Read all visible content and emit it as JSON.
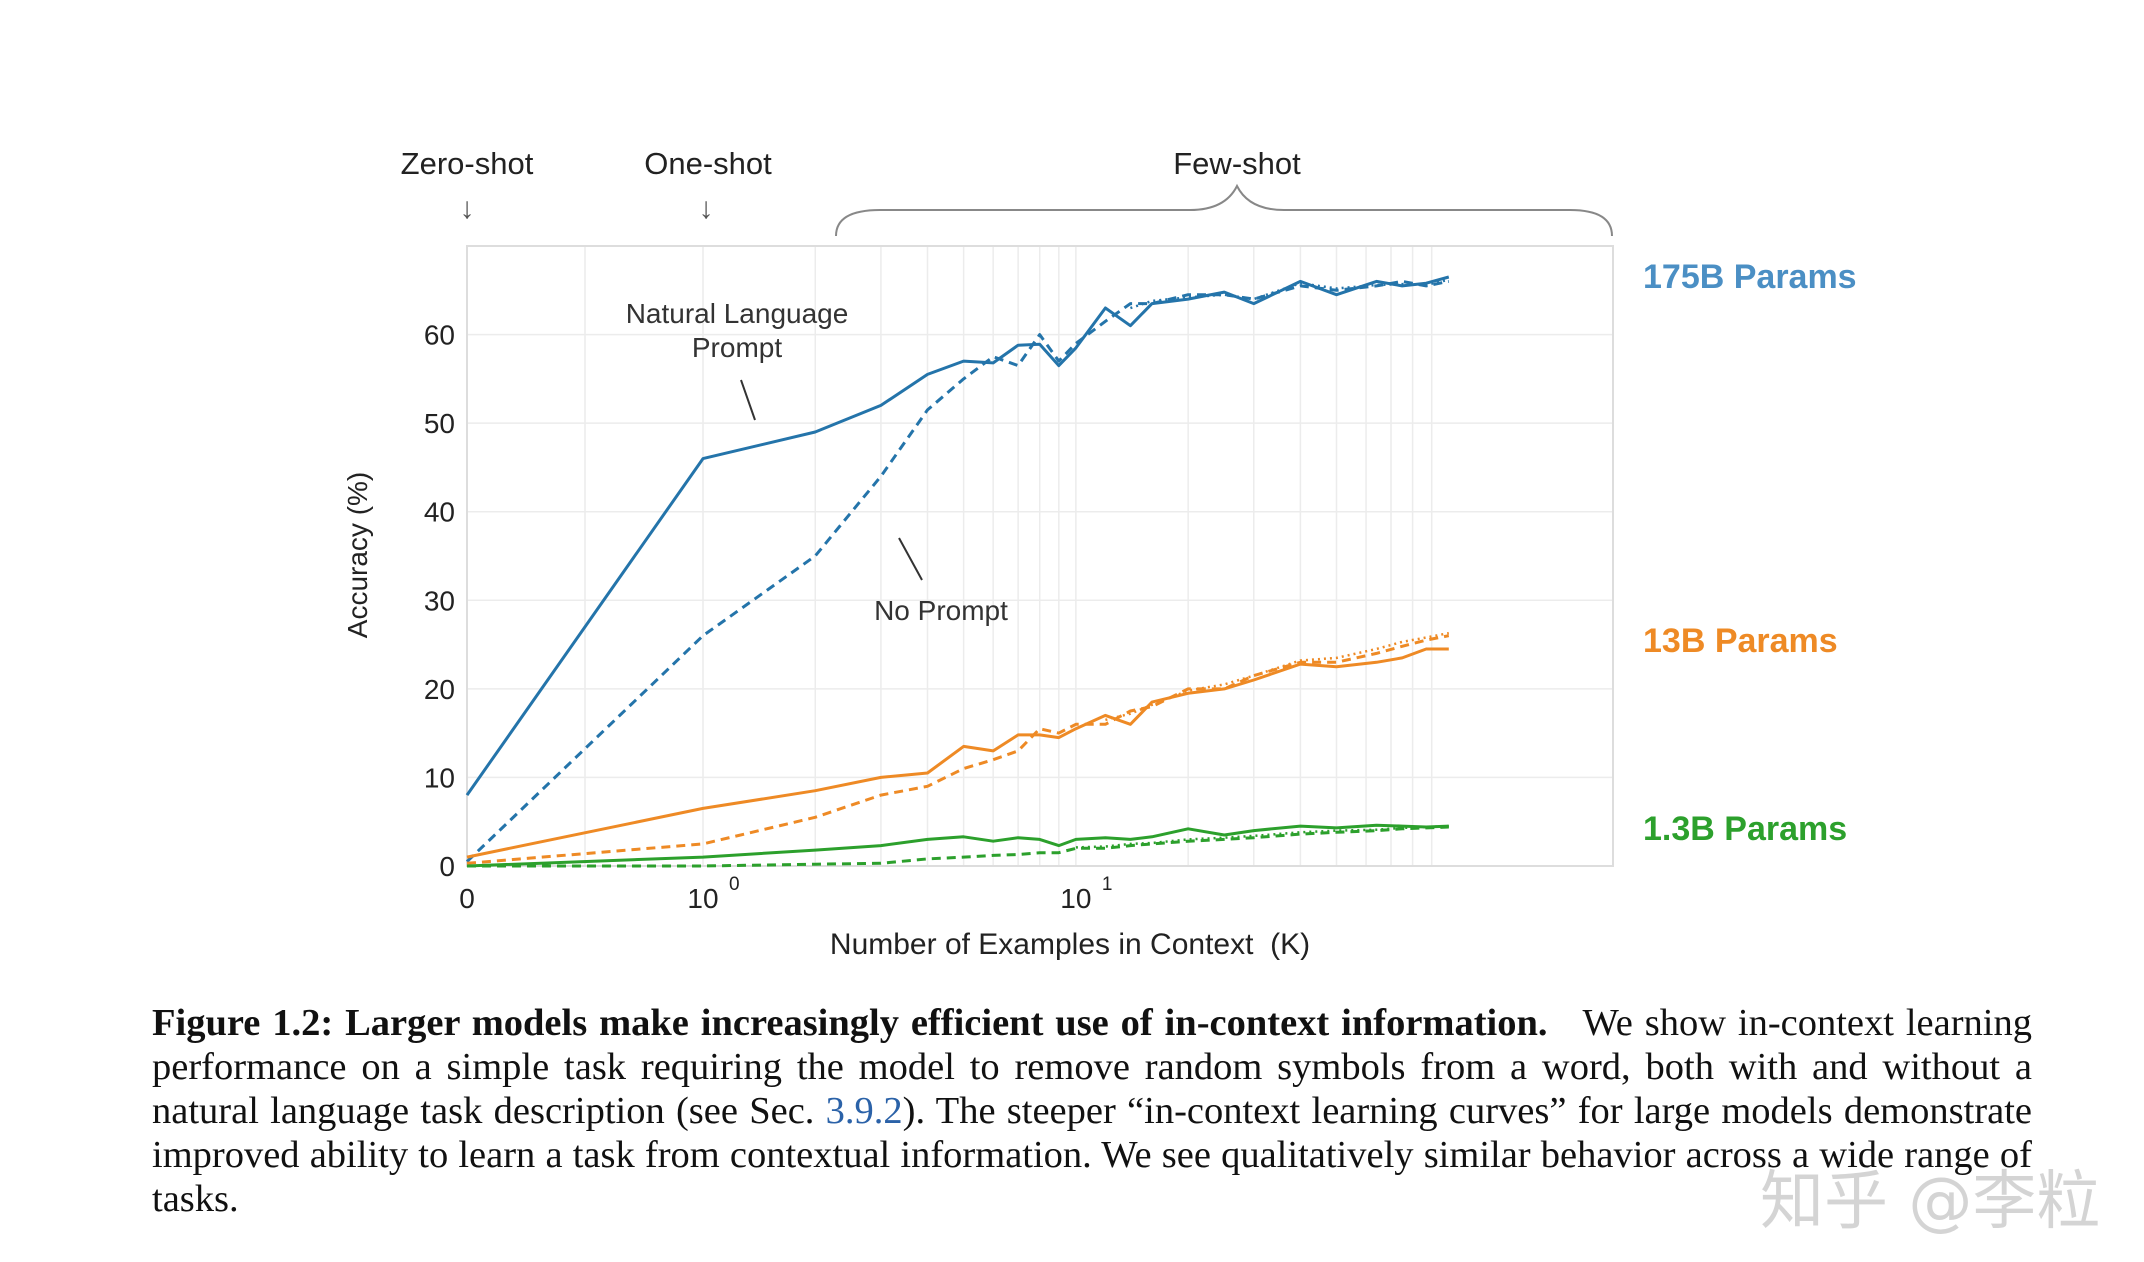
{
  "chart_data": {
    "type": "line",
    "xscale": "symlog",
    "xlabel": "Number of Examples in Context  (K)",
    "ylabel": "Accuracy (%)",
    "xlim": [
      0,
      100
    ],
    "ylim": [
      0,
      70
    ],
    "grid": true,
    "x_ticks": [
      {
        "value": 0,
        "base": "0",
        "exp": ""
      },
      {
        "value": 1,
        "base": "10",
        "exp": "0"
      },
      {
        "value": 10,
        "base": "10",
        "exp": "1"
      }
    ],
    "y_ticks": [
      0,
      10,
      20,
      30,
      40,
      50,
      60
    ],
    "regions": [
      "Zero-shot",
      "One-shot",
      "Few-shot"
    ],
    "annotations": {
      "natural_language": [
        "Natural Language",
        "Prompt"
      ],
      "no_prompt": "No Prompt"
    },
    "colors": {
      "blue": "#2474aa",
      "orange": "#ee8a25",
      "green": "#2ca02c",
      "grid": "#ececec"
    },
    "series": [
      {
        "name": "175B Params",
        "color": "#2474aa",
        "style": "solid",
        "x": [
          0,
          1,
          2,
          3,
          4,
          5,
          6,
          7,
          8,
          9,
          10,
          12,
          14,
          16,
          20,
          25,
          30,
          40,
          50,
          64,
          75,
          87,
          100
        ],
        "y": [
          8,
          46,
          49,
          52,
          55.5,
          57,
          56.8,
          58.8,
          58.9,
          56.5,
          58.5,
          63,
          61,
          63.5,
          64,
          64.8,
          63.5,
          66,
          64.5,
          66,
          65.5,
          65.8,
          66.5
        ]
      },
      {
        "name": "",
        "color": "#2474aa",
        "style": "dashed",
        "x": [
          0,
          1,
          2,
          3,
          4,
          5,
          6,
          7,
          8,
          9,
          10,
          12,
          14,
          16,
          20,
          25,
          30,
          40,
          50,
          64,
          75,
          87,
          100
        ],
        "y": [
          0.5,
          26,
          35,
          44,
          51.5,
          55,
          57.5,
          56.5,
          60,
          57,
          59,
          61.5,
          63.5,
          63.5,
          64.5,
          64.5,
          64,
          65.5,
          65,
          65.5,
          66,
          65.5,
          66
        ]
      },
      {
        "name": "",
        "color": "#2474aa",
        "style": "dotted",
        "x": [
          14,
          16,
          20,
          25,
          30,
          40,
          50,
          64,
          75,
          87,
          100
        ],
        "y": [
          63,
          63.8,
          64.2,
          64.5,
          64,
          65.8,
          65.2,
          65.6,
          65.7,
          65.6,
          66.2
        ]
      },
      {
        "name": "13B Params",
        "color": "#ee8a25",
        "style": "solid",
        "x": [
          0,
          1,
          2,
          3,
          4,
          5,
          6,
          7,
          8,
          9,
          10,
          12,
          14,
          16,
          20,
          25,
          30,
          40,
          50,
          64,
          75,
          87,
          100
        ],
        "y": [
          1,
          6.5,
          8.5,
          10,
          10.5,
          13.5,
          13,
          14.8,
          14.8,
          14.5,
          15.5,
          17,
          16,
          18.5,
          19.5,
          20,
          21,
          22.8,
          22.5,
          23,
          23.5,
          24.5,
          24.5
        ]
      },
      {
        "name": "",
        "color": "#ee8a25",
        "style": "dashed",
        "x": [
          0,
          1,
          2,
          3,
          4,
          5,
          6,
          7,
          8,
          9,
          10,
          12,
          14,
          16,
          20,
          25,
          30,
          40,
          50,
          64,
          75,
          87,
          100
        ],
        "y": [
          0.3,
          2.5,
          5.5,
          8,
          9,
          11,
          12,
          13,
          15.5,
          15,
          16,
          16,
          17.5,
          18,
          20,
          20,
          21.5,
          23,
          23,
          24,
          24.8,
          25.5,
          26
        ]
      },
      {
        "name": "",
        "color": "#ee8a25",
        "style": "dotted",
        "x": [
          12,
          14,
          16,
          20,
          25,
          30,
          40,
          50,
          64,
          75,
          87,
          100
        ],
        "y": [
          16.5,
          17.2,
          18.2,
          19.8,
          20.5,
          21.5,
          23.2,
          23.5,
          24.5,
          25.3,
          25.8,
          26.3
        ]
      },
      {
        "name": "1.3B Params",
        "color": "#2ca02c",
        "style": "solid",
        "x": [
          0,
          1,
          2,
          3,
          4,
          5,
          6,
          7,
          8,
          9,
          10,
          12,
          14,
          16,
          20,
          25,
          30,
          40,
          50,
          64,
          75,
          87,
          100
        ],
        "y": [
          0,
          1,
          1.8,
          2.3,
          3,
          3.3,
          2.8,
          3.2,
          3,
          2.3,
          3,
          3.2,
          3,
          3.3,
          4.2,
          3.5,
          4,
          4.5,
          4.3,
          4.6,
          4.5,
          4.4,
          4.5
        ]
      },
      {
        "name": "",
        "color": "#2ca02c",
        "style": "dashed",
        "x": [
          0,
          1,
          2,
          3,
          4,
          5,
          6,
          7,
          8,
          9,
          10,
          12,
          14,
          16,
          20,
          25,
          30,
          40,
          50,
          64,
          75,
          87,
          100
        ],
        "y": [
          0,
          0,
          0.2,
          0.3,
          0.8,
          1,
          1.2,
          1.3,
          1.5,
          1.5,
          2,
          2,
          2.3,
          2.5,
          2.8,
          3,
          3.2,
          3.6,
          3.8,
          4,
          4.2,
          4.3,
          4.4
        ]
      },
      {
        "name": "",
        "color": "#2ca02c",
        "style": "dotted",
        "x": [
          10,
          12,
          14,
          16,
          20,
          25,
          30,
          40,
          50,
          64,
          75,
          87,
          100
        ],
        "y": [
          2.1,
          2.2,
          2.5,
          2.6,
          3,
          3.2,
          3.4,
          3.8,
          4,
          4.1,
          4.3,
          4.4,
          4.5
        ]
      }
    ]
  },
  "caption": {
    "label": "Figure 1.2: Larger models make increasingly efficient use of in-context information.",
    "text_before_ref": "We show in-context learning performance on a simple task requiring the model to remove random symbols from a word, both with and without a natural language task description (see Sec. ",
    "ref": "3.9.2",
    "text_after_ref": "). The steeper “in-context learning curves” for large models demonstrate improved ability to learn a task from contextual information. We see qualitatively similar behavior across a wide range of tasks."
  },
  "watermark": "知乎 @李粒"
}
